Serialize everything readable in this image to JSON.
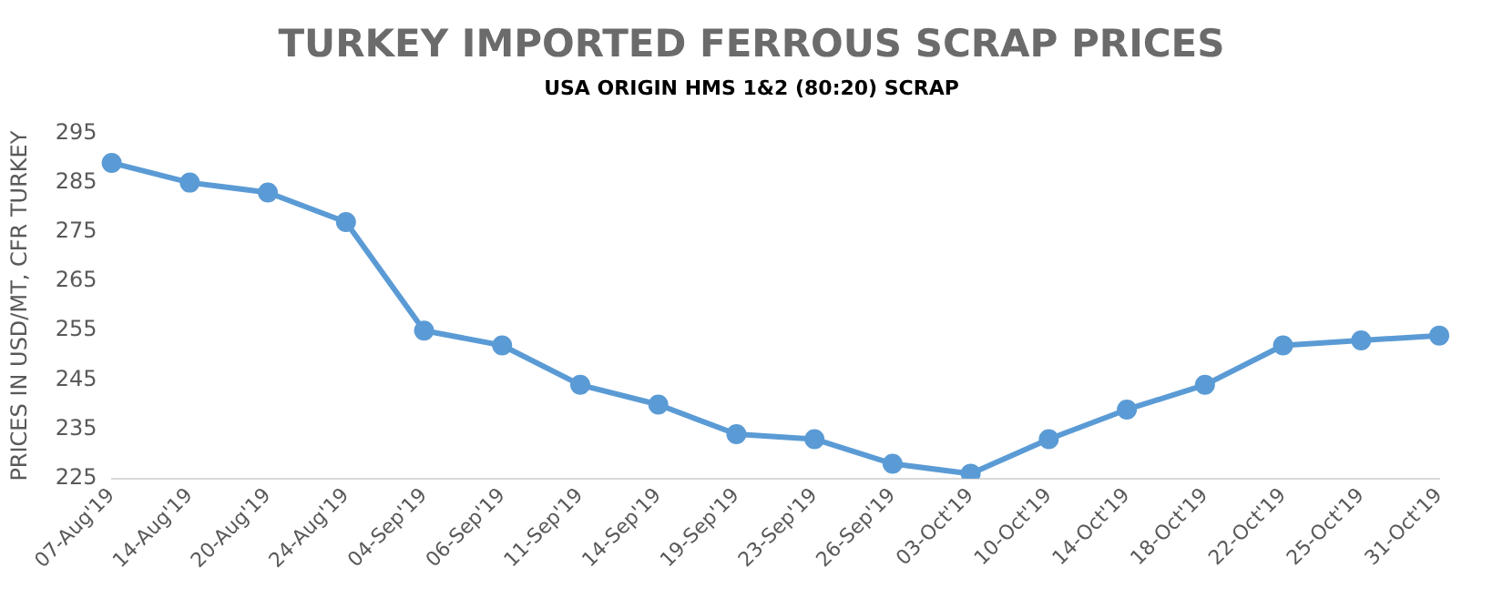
{
  "chart_data": {
    "type": "line",
    "title": "TURKEY IMPORTED FERROUS SCRAP PRICES",
    "subtitle": "USA ORIGIN HMS 1&2 (80:20) SCRAP",
    "ylabel": "PRICES IN USD/MT, CFR TURKEY",
    "categories": [
      "07-Aug'19",
      "14-Aug'19",
      "20-Aug'19",
      "24-Aug'19",
      "04-Sep'19",
      "06-Sep'19",
      "11-Sep'19",
      "14-Sep'19",
      "19-Sep'19",
      "23-Sep'19",
      "26-Sep'19",
      "03-Oct'19",
      "10-Oct'19",
      "14-Oct'19",
      "18-Oct'19",
      "22-Oct'19",
      "25-Oct'19",
      "31-Oct'19"
    ],
    "series": [
      {
        "color": "#5b9bd5",
        "values": [
          289,
          285,
          283,
          277,
          255,
          252,
          244,
          240,
          234,
          233,
          228,
          226,
          233,
          239,
          244,
          252,
          253,
          254
        ]
      }
    ],
    "ylim": [
      225,
      295
    ],
    "yticks": [
      225,
      235,
      245,
      255,
      265,
      275,
      285,
      295
    ],
    "grid": false,
    "legend": false,
    "marker": "circle",
    "line_style": "solid"
  }
}
